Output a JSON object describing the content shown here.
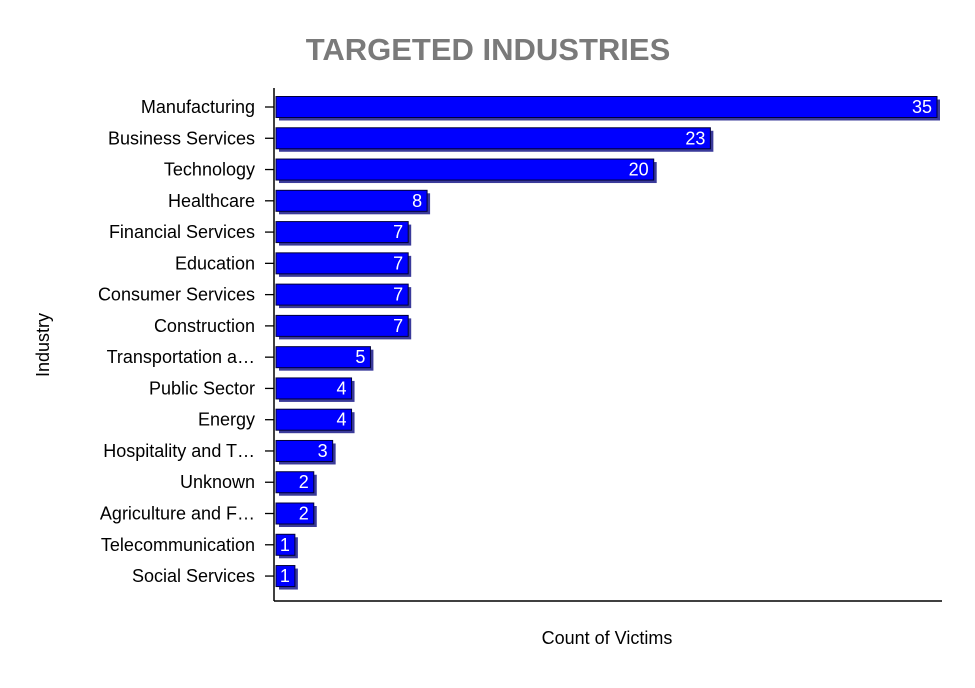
{
  "chart_data": {
    "type": "bar",
    "orientation": "horizontal",
    "title": "TARGETED INDUSTRIES",
    "xlabel": "Count of Victims",
    "ylabel": "Industry",
    "categories": [
      "Manufacturing",
      "Business Services",
      "Technology",
      "Healthcare",
      "Financial Services",
      "Education",
      "Consumer Services",
      "Construction",
      "Transportation a…",
      "Public Sector",
      "Energy",
      "Hospitality and T…",
      "Unknown",
      "Agriculture and F…",
      "Telecommunication",
      "Social Services"
    ],
    "values": [
      35,
      23,
      20,
      8,
      7,
      7,
      7,
      7,
      5,
      4,
      4,
      3,
      2,
      2,
      1,
      1
    ],
    "xlim": [
      0,
      35
    ],
    "grid": false,
    "legend": "none",
    "colors": {
      "bar": "#0000ff",
      "bar_shadow": "#3a3a9a",
      "bar_outline": "#00003a",
      "title": "#7a7a7a",
      "axis": "#000000",
      "data_label": "#ffffff"
    }
  }
}
